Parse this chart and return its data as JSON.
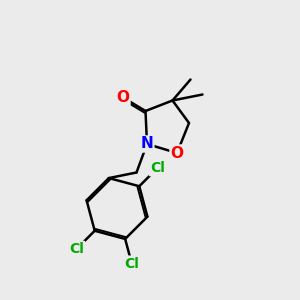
{
  "background_color": "#ebebeb",
  "atom_colors": {
    "C": "#000000",
    "N": "#0000ff",
    "O": "#ff0000",
    "Cl": "#00aa00"
  },
  "bond_color": "#000000",
  "bond_width": 1.8,
  "dbo": 0.055
}
